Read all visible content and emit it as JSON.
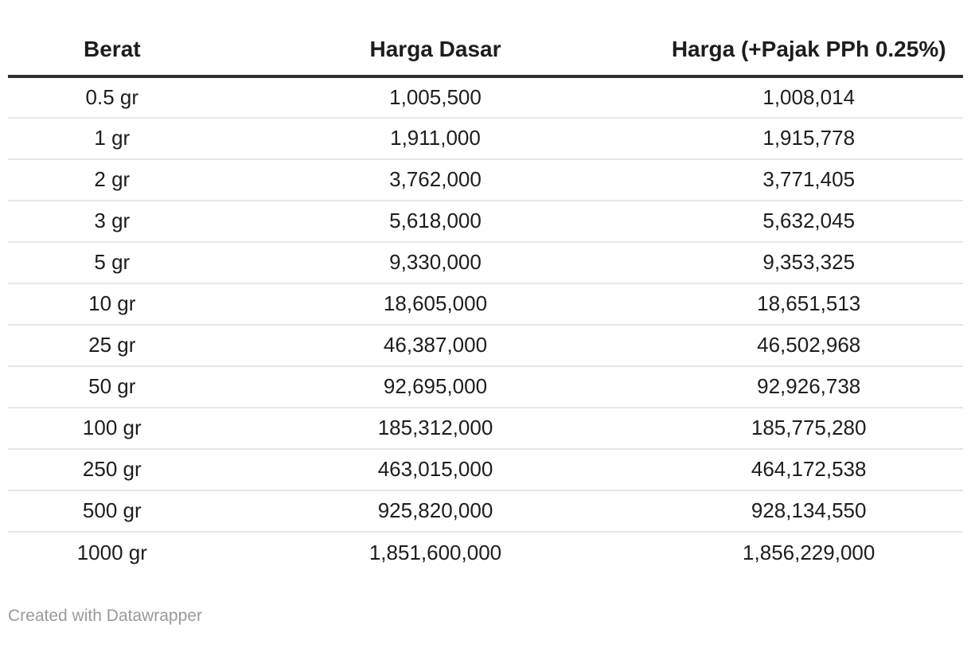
{
  "chart_data": {
    "type": "table",
    "columns": [
      "Berat",
      "Harga Dasar",
      "Harga (+Pajak PPh 0.25%)"
    ],
    "rows": [
      [
        "0.5 gr",
        "1,005,500",
        "1,008,014"
      ],
      [
        "1 gr",
        "1,911,000",
        "1,915,778"
      ],
      [
        "2 gr",
        "3,762,000",
        "3,771,405"
      ],
      [
        "3 gr",
        "5,618,000",
        "5,632,045"
      ],
      [
        "5 gr",
        "9,330,000",
        "9,353,325"
      ],
      [
        "10 gr",
        "18,605,000",
        "18,651,513"
      ],
      [
        "25 gr",
        "46,387,000",
        "46,502,968"
      ],
      [
        "50 gr",
        "92,695,000",
        "92,926,738"
      ],
      [
        "100 gr",
        "185,312,000",
        "185,775,280"
      ],
      [
        "250 gr",
        "463,015,000",
        "464,172,538"
      ],
      [
        "500 gr",
        "925,820,000",
        "928,134,550"
      ],
      [
        "1000 gr",
        "1,851,600,000",
        "1,856,229,000"
      ]
    ],
    "layout_hints": {
      "column_alignment": [
        "center",
        "center",
        "center"
      ],
      "grid": "horizontal-row-separators",
      "header_rule": "thick-dark"
    }
  },
  "footer": {
    "attribution": "Created with Datawrapper"
  },
  "colors": {
    "thick_border": "#2e2e2e",
    "row_border": "#e6e6e6",
    "header_text": "#1d1d1d",
    "cell_text": "#1d1d1d",
    "footer_text": "#9a9a9a",
    "background": "#ffffff"
  }
}
